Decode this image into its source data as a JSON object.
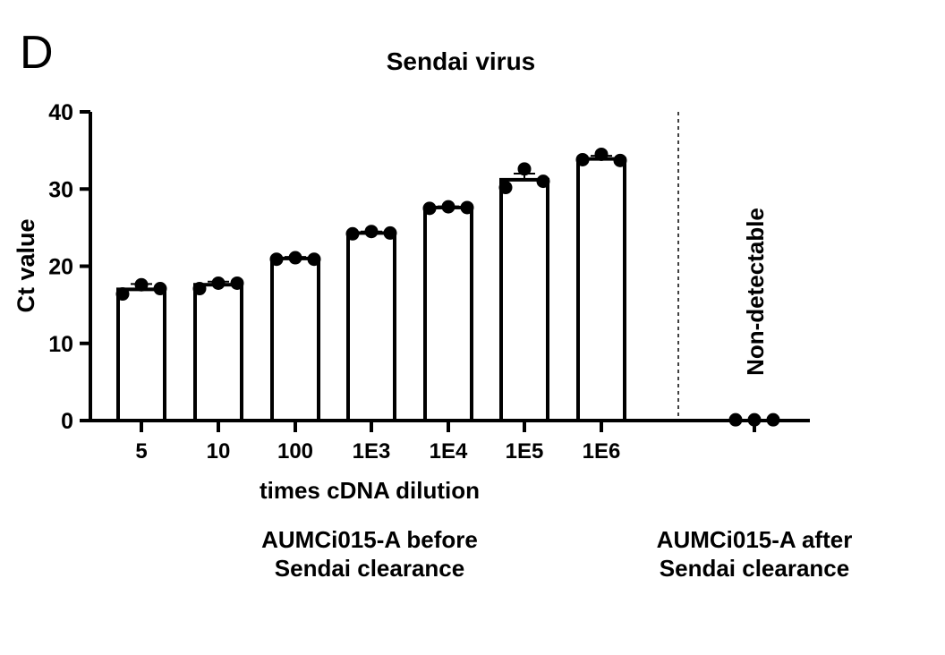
{
  "panel_label": "D",
  "chart_data": {
    "type": "bar",
    "title": "Sendai virus",
    "ylabel": "Ct value",
    "xlabel": "times cDNA dilution",
    "ylim": [
      0,
      40
    ],
    "yticks": [
      0,
      10,
      20,
      30,
      40
    ],
    "categories": [
      "5",
      "10",
      "100",
      "1E3",
      "1E4",
      "1E5",
      "1E6",
      ""
    ],
    "values": [
      17.0,
      17.6,
      21.0,
      24.3,
      27.6,
      31.2,
      33.9,
      0
    ],
    "errors": [
      0.7,
      0.4,
      0.2,
      0.2,
      0.15,
      0.8,
      0.4,
      0.1
    ],
    "points": [
      [
        16.4,
        17.6,
        17.1
      ],
      [
        17.1,
        17.8,
        17.8
      ],
      [
        20.9,
        21.1,
        20.9
      ],
      [
        24.2,
        24.5,
        24.3
      ],
      [
        27.5,
        27.7,
        27.6
      ],
      [
        30.2,
        32.6,
        31.0
      ],
      [
        33.8,
        34.5,
        33.7
      ],
      [
        0.1,
        0.1,
        0.1
      ]
    ],
    "annotation": "Non-detectable",
    "grid": false,
    "group_labels": [
      {
        "line1": "AUMCi015-A before",
        "line2": "Sendai clearance"
      },
      {
        "line1": "AUMCi015-A after",
        "line2": "Sendai clearance"
      }
    ]
  }
}
